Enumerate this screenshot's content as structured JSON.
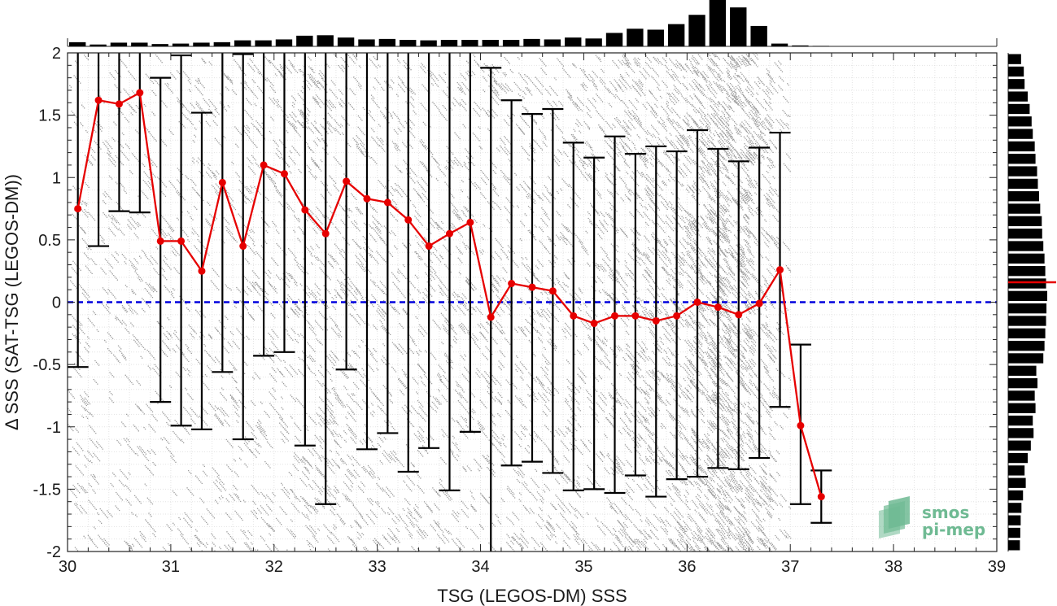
{
  "chart_data": {
    "type": "line",
    "xlabel": "TSG (LEGOS-DM) SSS",
    "ylabel": "Δ SSS (SAT-TSG (LEGOS-DM))",
    "xlim": [
      30,
      39
    ],
    "ylim": [
      -2,
      2
    ],
    "x_ticks": [
      "30",
      "31",
      "32",
      "33",
      "34",
      "35",
      "36",
      "37",
      "38",
      "39"
    ],
    "y_ticks": [
      "2",
      "1.5",
      "1",
      "0.5",
      "0",
      "-0.5",
      "-1",
      "-1.5",
      "-2"
    ],
    "grid": "minor dotted",
    "reference_line": {
      "y": 0,
      "color": "#0000dd",
      "style": "dashed"
    },
    "series": [
      {
        "color": "#e60000",
        "x": [
          30.1,
          30.3,
          30.5,
          30.7,
          30.9,
          31.1,
          31.3,
          31.5,
          31.7,
          31.9,
          32.1,
          32.3,
          32.5,
          32.7,
          32.9,
          33.1,
          33.3,
          33.5,
          33.7,
          33.9,
          34.1,
          34.3,
          34.5,
          34.7,
          34.9,
          35.1,
          35.3,
          35.5,
          35.7,
          35.9,
          36.1,
          36.3,
          36.5,
          36.7,
          36.9,
          37.1,
          37.3
        ],
        "values": [
          0.75,
          1.62,
          1.59,
          1.68,
          0.49,
          0.49,
          0.25,
          0.96,
          0.45,
          1.1,
          1.03,
          0.74,
          0.55,
          0.97,
          0.83,
          0.8,
          0.66,
          0.45,
          0.55,
          0.64,
          -0.12,
          0.15,
          0.12,
          0.09,
          -0.11,
          -0.17,
          -0.11,
          -0.11,
          -0.15,
          -0.11,
          0.0,
          -0.04,
          -0.1,
          -0.01,
          0.26,
          -0.99,
          -1.56
        ],
        "error_low": [
          -0.52,
          0.45,
          0.73,
          0.72,
          -0.8,
          -0.99,
          -1.02,
          -0.56,
          -1.1,
          -0.43,
          -0.4,
          -1.15,
          -1.62,
          -0.54,
          -1.18,
          -1.05,
          -1.36,
          -1.17,
          -1.51,
          -1.04,
          -2.0,
          -1.31,
          -1.28,
          -1.37,
          -1.51,
          -1.5,
          -1.53,
          -1.39,
          -1.56,
          -1.42,
          -1.4,
          -1.33,
          -1.34,
          -1.25,
          -0.84,
          -1.62,
          -1.77
        ],
        "error_high": [
          2.0,
          2.0,
          2.0,
          2.0,
          1.8,
          1.98,
          1.52,
          2.0,
          1.99,
          2.0,
          2.0,
          2.0,
          2.0,
          2.0,
          2.0,
          2.0,
          2.0,
          2.0,
          2.0,
          2.0,
          1.88,
          1.62,
          1.51,
          1.55,
          1.28,
          1.16,
          1.33,
          1.19,
          1.25,
          1.21,
          1.38,
          1.23,
          1.13,
          1.24,
          1.36,
          -0.34,
          -1.35
        ]
      }
    ],
    "top_histogram": {
      "bin_centers": [
        30.1,
        30.3,
        30.5,
        30.7,
        30.9,
        31.1,
        31.3,
        31.5,
        31.7,
        31.9,
        32.1,
        32.3,
        32.5,
        32.7,
        32.9,
        33.1,
        33.3,
        33.5,
        33.7,
        33.9,
        34.1,
        34.3,
        34.5,
        34.7,
        34.9,
        35.1,
        35.3,
        35.5,
        35.7,
        35.9,
        36.1,
        36.3,
        36.5,
        36.7,
        36.9,
        37.1,
        37.3
      ],
      "relative_counts": [
        0.09,
        0.04,
        0.08,
        0.08,
        0.05,
        0.06,
        0.08,
        0.09,
        0.13,
        0.13,
        0.15,
        0.23,
        0.24,
        0.19,
        0.15,
        0.16,
        0.14,
        0.13,
        0.14,
        0.14,
        0.14,
        0.14,
        0.16,
        0.15,
        0.19,
        0.17,
        0.29,
        0.38,
        0.36,
        0.48,
        0.68,
        1.0,
        0.84,
        0.44,
        0.06,
        0.02,
        0.01
      ]
    },
    "right_histogram": {
      "bin_centers": [
        1.95,
        1.85,
        1.75,
        1.65,
        1.55,
        1.45,
        1.35,
        1.25,
        1.15,
        1.05,
        0.95,
        0.85,
        0.75,
        0.65,
        0.55,
        0.45,
        0.35,
        0.25,
        0.15,
        0.05,
        -0.05,
        -0.15,
        -0.25,
        -0.35,
        -0.45,
        -0.55,
        -0.65,
        -0.75,
        -0.85,
        -0.95,
        -1.05,
        -1.15,
        -1.25,
        -1.35,
        -1.45,
        -1.55,
        -1.65,
        -1.75,
        -1.85,
        -1.95
      ],
      "relative_counts": [
        0.33,
        0.4,
        0.42,
        0.5,
        0.55,
        0.6,
        0.63,
        0.68,
        0.7,
        0.74,
        0.76,
        0.79,
        0.82,
        0.86,
        0.87,
        0.9,
        0.93,
        0.95,
        0.97,
        1.0,
        0.98,
        0.97,
        0.95,
        0.93,
        0.9,
        0.72,
        0.75,
        0.68,
        0.7,
        0.63,
        0.65,
        0.58,
        0.5,
        0.42,
        0.45,
        0.38,
        0.34,
        0.32,
        0.31,
        0.3
      ],
      "mean_marker": {
        "y": 0.16,
        "color": "#e60000"
      }
    },
    "scatter_note": "dense grey sample points behind error bars",
    "logo": {
      "line1": "smos",
      "line2": "pi-mep",
      "color": "#6fba93"
    }
  }
}
